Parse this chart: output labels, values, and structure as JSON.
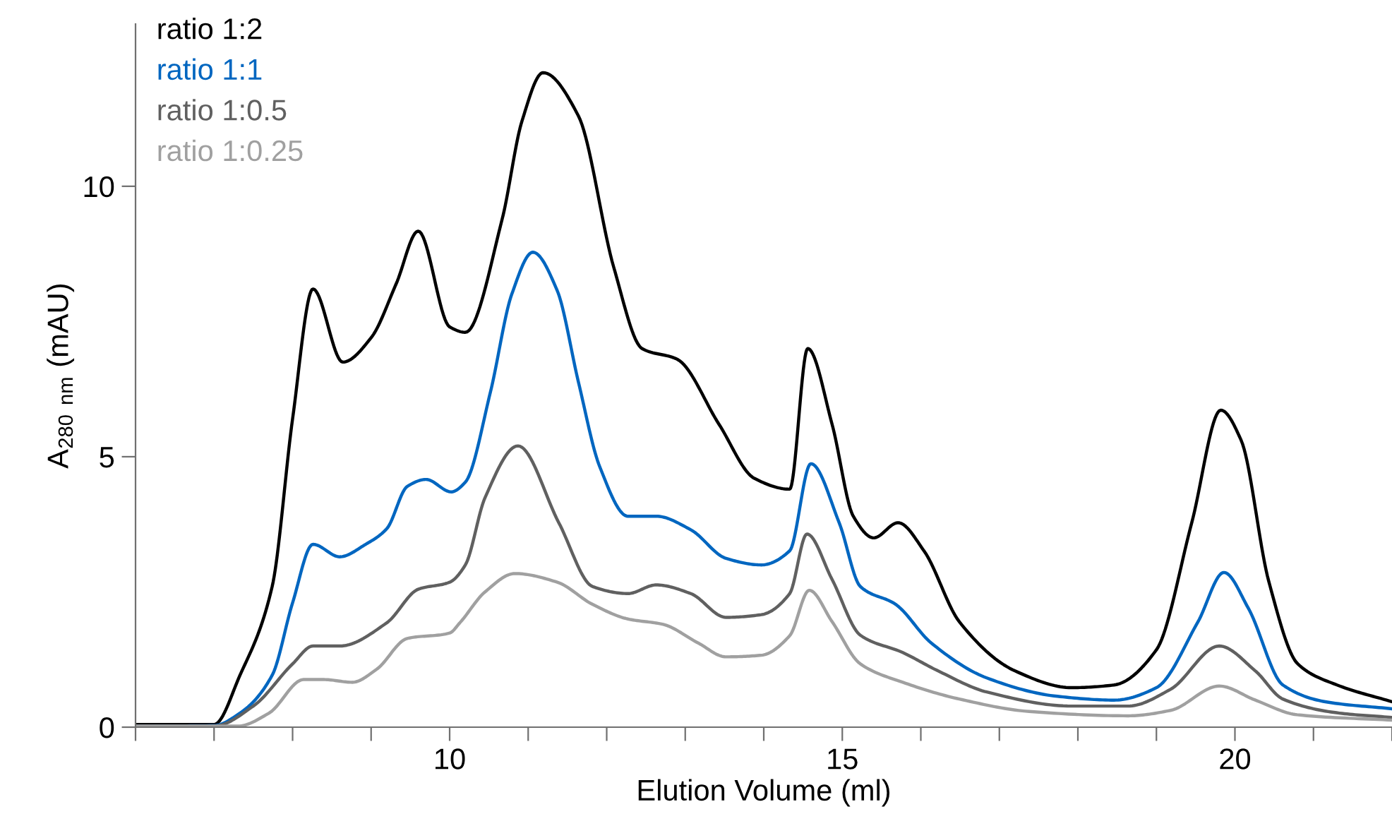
{
  "chart_data": {
    "type": "line",
    "xlabel": "Elution Volume (ml)",
    "ylabel": "A$_{280 nm}$ (mAU)",
    "xlim": [
      6,
      22
    ],
    "ylim": [
      0,
      13
    ],
    "xticks": [
      {
        "value": 6,
        "label": null
      },
      {
        "value": 7,
        "label": null
      },
      {
        "value": 8,
        "label": null
      },
      {
        "value": 9,
        "label": null
      },
      10,
      {
        "value": 11,
        "label": null
      },
      {
        "value": 12,
        "label": null
      },
      {
        "value": 13,
        "label": null
      },
      {
        "value": 14,
        "label": null
      },
      15,
      {
        "value": 16,
        "label": null
      },
      {
        "value": 17,
        "label": null
      },
      {
        "value": 18,
        "label": null
      },
      {
        "value": 19,
        "label": null
      },
      20,
      {
        "value": 21,
        "label": null
      },
      {
        "value": 22,
        "label": null
      }
    ],
    "yticks": [
      0,
      5,
      10
    ],
    "grid": false,
    "legend": "top left",
    "marker": "none",
    "line_style": "solid",
    "series": [
      {
        "name": "ratio 1:2",
        "color": "#000000",
        "x": [
          6.0,
          7.0,
          7.33,
          7.74,
          8.0,
          8.26,
          8.64,
          9.0,
          9.32,
          9.6,
          10.0,
          10.2,
          10.67,
          10.92,
          11.19,
          11.64,
          12.09,
          12.45,
          12.9,
          13.43,
          13.88,
          14.33,
          14.56,
          14.87,
          15.14,
          15.4,
          15.71,
          16.04,
          16.49,
          17.2,
          17.92,
          18.46,
          19.0,
          19.45,
          19.82,
          20.08,
          20.43,
          20.8,
          21.3,
          22.0
        ],
        "values": [
          0.05,
          0.05,
          0.96,
          2.6,
          5.7,
          8.1,
          6.75,
          7.2,
          8.2,
          9.17,
          7.4,
          7.3,
          9.4,
          11.2,
          12.1,
          11.3,
          8.5,
          7.0,
          6.8,
          5.6,
          4.6,
          4.4,
          7.0,
          5.6,
          3.9,
          3.5,
          3.78,
          3.26,
          1.95,
          1.04,
          0.73,
          0.78,
          1.43,
          3.78,
          5.86,
          5.3,
          2.7,
          1.17,
          0.78,
          0.47
        ]
      },
      {
        "name": "ratio 1:1",
        "color": "#0066c0",
        "x": [
          6.0,
          7.0,
          7.33,
          7.74,
          8.0,
          8.26,
          8.6,
          8.93,
          9.2,
          9.46,
          9.7,
          10.02,
          10.2,
          10.52,
          10.79,
          11.06,
          11.37,
          11.64,
          11.91,
          12.27,
          12.63,
          13.07,
          13.52,
          13.97,
          14.33,
          14.6,
          14.96,
          15.23,
          15.68,
          16.13,
          16.84,
          17.74,
          18.46,
          19.0,
          19.53,
          19.86,
          20.17,
          20.61,
          21.15,
          22.0
        ],
        "values": [
          0.02,
          0.03,
          0.26,
          0.96,
          2.3,
          3.38,
          3.15,
          3.38,
          3.67,
          4.45,
          4.58,
          4.35,
          4.53,
          6.2,
          8.0,
          8.78,
          8.07,
          6.38,
          4.82,
          3.9,
          3.9,
          3.65,
          3.12,
          3.0,
          3.26,
          4.87,
          3.78,
          2.6,
          2.27,
          1.56,
          0.91,
          0.57,
          0.5,
          0.73,
          1.95,
          2.86,
          2.2,
          0.78,
          0.47,
          0.34
        ]
      },
      {
        "name": "ratio 1:0.5",
        "color": "#606060",
        "x": [
          6.0,
          7.0,
          7.5,
          8.0,
          8.26,
          8.6,
          9.2,
          9.6,
          10.0,
          10.2,
          10.45,
          10.87,
          11.39,
          11.82,
          12.27,
          12.63,
          13.07,
          13.52,
          13.97,
          14.33,
          14.55,
          14.87,
          15.23,
          15.77,
          16.22,
          16.84,
          17.92,
          18.64,
          19.18,
          19.8,
          20.26,
          20.61,
          21.33,
          22.0
        ],
        "values": [
          0.02,
          0.02,
          0.39,
          1.17,
          1.5,
          1.5,
          1.93,
          2.55,
          2.68,
          3.0,
          4.24,
          5.2,
          3.78,
          2.6,
          2.47,
          2.63,
          2.47,
          2.03,
          2.08,
          2.47,
          3.57,
          2.73,
          1.7,
          1.38,
          1.04,
          0.65,
          0.39,
          0.39,
          0.7,
          1.5,
          1.04,
          0.52,
          0.26,
          0.18
        ]
      },
      {
        "name": "ratio 1:0.25",
        "color": "#a0a0a0",
        "x": [
          6.0,
          7.3,
          7.7,
          8.14,
          8.4,
          8.76,
          9.07,
          9.46,
          10.0,
          10.13,
          10.45,
          10.83,
          11.37,
          11.82,
          12.27,
          12.72,
          13.16,
          13.52,
          13.97,
          14.33,
          14.58,
          14.87,
          15.23,
          15.77,
          16.49,
          17.38,
          18.64,
          19.18,
          19.8,
          20.26,
          20.79,
          22.0
        ],
        "values": [
          0.02,
          0.02,
          0.26,
          0.88,
          0.88,
          0.83,
          1.07,
          1.64,
          1.74,
          1.93,
          2.5,
          2.84,
          2.68,
          2.27,
          2.0,
          1.9,
          1.56,
          1.3,
          1.33,
          1.69,
          2.53,
          1.95,
          1.17,
          0.83,
          0.52,
          0.29,
          0.21,
          0.31,
          0.76,
          0.5,
          0.23,
          0.13
        ]
      }
    ]
  }
}
